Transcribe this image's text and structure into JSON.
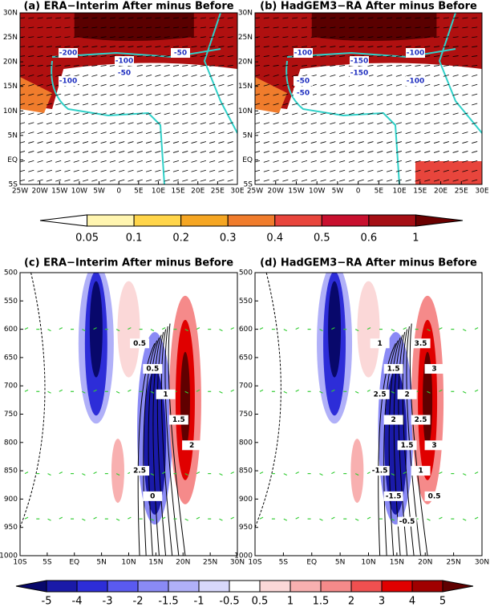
{
  "panels": [
    {
      "title": "(a) ERA−Interim After minus Before",
      "xticks": [
        "25W",
        "20W",
        "15W",
        "10W",
        "5W",
        "0",
        "5E",
        "10E",
        "15E",
        "20E",
        "25E",
        "30E"
      ],
      "yticks": [
        "30N",
        "25N",
        "20N",
        "15N",
        "10N",
        "5N",
        "EQ",
        "5S"
      ],
      "contour_labels": [
        "-200",
        "-100",
        "-50",
        "-100",
        "-50"
      ]
    },
    {
      "title": "(b) HadGEM3−RA After minus Before",
      "xticks": [
        "25W",
        "20W",
        "15W",
        "10W",
        "5W",
        "0",
        "5E",
        "10E",
        "15E",
        "20E",
        "25E",
        "30E"
      ],
      "yticks": [
        "30N",
        "25N",
        "20N",
        "15N",
        "10N",
        "5N",
        "EQ",
        "5S"
      ],
      "contour_labels": [
        "-100",
        "-150",
        "-100",
        "-50",
        "-150",
        "-100",
        "-50"
      ]
    },
    {
      "title": "(c) ERA−Interim After minus Before",
      "xticks": [
        "10S",
        "5S",
        "EQ",
        "5N",
        "10N",
        "15N",
        "20N",
        "25N",
        "30N"
      ],
      "yticks": [
        500,
        550,
        600,
        650,
        700,
        750,
        800,
        850,
        900,
        950,
        1000
      ],
      "contour_labels": [
        "0.5",
        "0.5",
        "1",
        "1.5",
        "2",
        "2.5",
        "0"
      ]
    },
    {
      "title": "(d) HadGEM3−RA After minus Before",
      "xticks": [
        "10S",
        "5S",
        "EQ",
        "5N",
        "10N",
        "15N",
        "20N",
        "25N",
        "30N"
      ],
      "yticks": [
        500,
        550,
        600,
        650,
        700,
        750,
        800,
        850,
        900,
        950,
        1000
      ],
      "contour_labels": [
        "1",
        "1.5",
        "2",
        "2.5",
        "3",
        "-1.5",
        "-1.5",
        "-0.5",
        "3.5",
        "3",
        "2.5",
        "2",
        "1.5",
        "1",
        "0.5"
      ]
    }
  ],
  "colorbars": [
    {
      "labels": [
        0.05,
        0.1,
        0.2,
        0.3,
        0.4,
        0.5,
        0.6,
        1
      ]
    },
    {
      "labels": [
        -5,
        -4,
        -3,
        -2,
        -1.5,
        -1,
        -0.5,
        0.5,
        1,
        1.5,
        2,
        3,
        4,
        5
      ]
    }
  ]
}
